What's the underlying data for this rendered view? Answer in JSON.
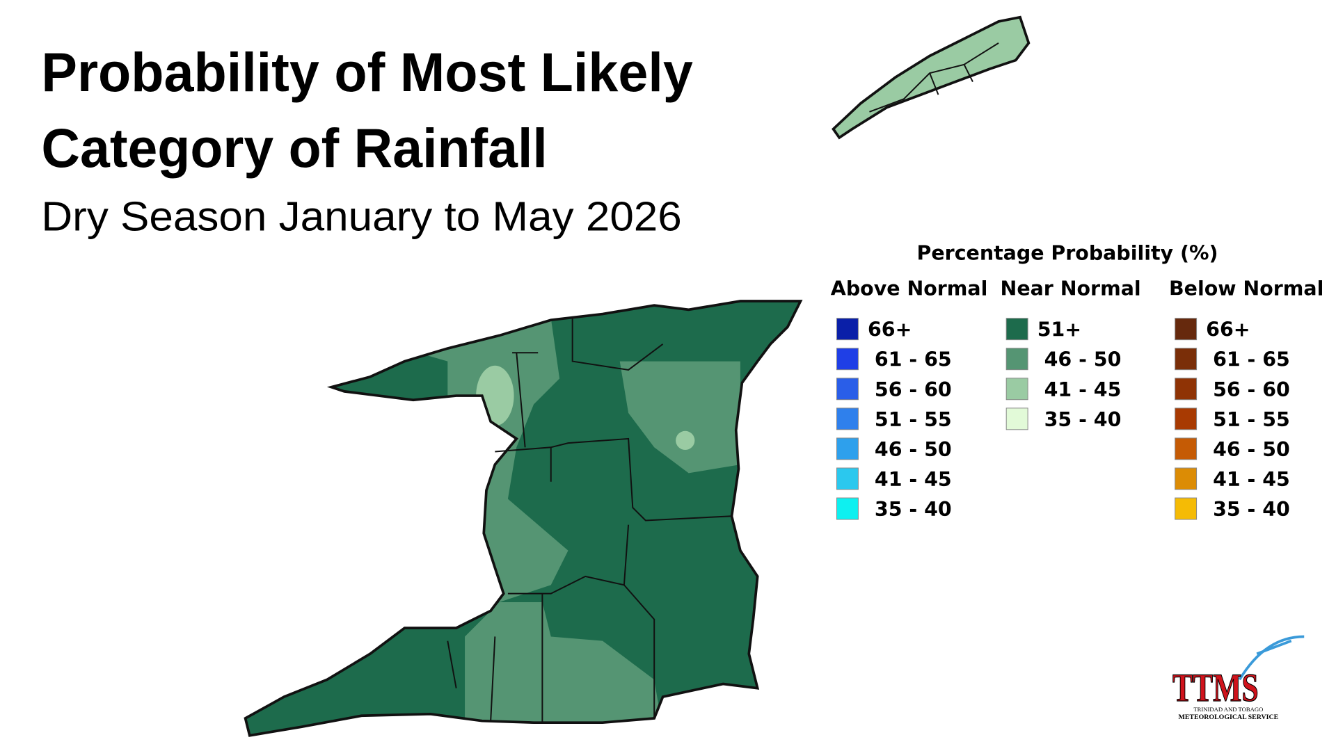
{
  "header": {
    "title_lines": [
      "Probability of Most Likely",
      "Category of Rainfall"
    ],
    "subtitle": "Dry Season January to May 2026"
  },
  "legend": {
    "title": "Percentage Probability (%)",
    "columns": [
      {
        "heading": "Above Normal",
        "items": [
          {
            "label": "66+",
            "color": "#0a1fa8"
          },
          {
            "label": "61 - 65",
            "color": "#1f3fe6"
          },
          {
            "label": "56 - 60",
            "color": "#2a5ee8"
          },
          {
            "label": "51 - 55",
            "color": "#2f80ec"
          },
          {
            "label": "46 - 50",
            "color": "#2ea0ec"
          },
          {
            "label": "41 - 45",
            "color": "#2bc8ee"
          },
          {
            "label": "35 - 40",
            "color": "#0ef0f0"
          }
        ]
      },
      {
        "heading": "Near Normal",
        "items": [
          {
            "label": "51+",
            "color": "#1d6b4c"
          },
          {
            "label": "46 - 50",
            "color": "#559573"
          },
          {
            "label": "41 - 45",
            "color": "#9acba3"
          },
          {
            "label": "35 - 40",
            "color": "#e2fad8"
          }
        ]
      },
      {
        "heading": "Below Normal",
        "items": [
          {
            "label": "66+",
            "color": "#66290d"
          },
          {
            "label": "61 - 65",
            "color": "#7a2e08"
          },
          {
            "label": "56 - 60",
            "color": "#8f3305"
          },
          {
            "label": "51 - 55",
            "color": "#a83a02"
          },
          {
            "label": "46 - 50",
            "color": "#c55b05"
          },
          {
            "label": "41 - 45",
            "color": "#dc8c05"
          },
          {
            "label": "35 - 40",
            "color": "#f5bb05"
          }
        ]
      }
    ]
  },
  "logo": {
    "name": "TTMS",
    "lines": [
      "TRINIDAD AND TOBAGO",
      "METEOROLOGICAL SERVICE"
    ]
  }
}
